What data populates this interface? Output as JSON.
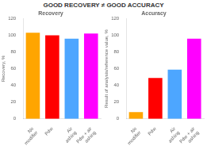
{
  "title": "GOOD RECOVERY ≠ GOOD ACCURACY",
  "chart_data": [
    {
      "type": "bar",
      "title": "Recovery",
      "categories": [
        "No\nmodifier",
        "Pdw",
        "Air\nashing",
        "Pdw + air\nashing"
      ],
      "values": [
        103,
        100,
        96,
        102
      ],
      "colors": [
        "#FFA500",
        "#FF0000",
        "#4da6ff",
        "#FF00FF"
      ],
      "ylabel": "Recovery, %",
      "ylim": [
        0,
        120
      ],
      "yticks": [
        0,
        20,
        40,
        60,
        80,
        100,
        120
      ],
      "grid": false
    },
    {
      "type": "bar",
      "title": "Accuracy",
      "categories": [
        "No\nmodifier",
        "Pdw",
        "Air\nashing",
        "Pdw + air\nashing"
      ],
      "values": [
        8,
        49,
        59,
        96
      ],
      "colors": [
        "#FFA500",
        "#FF0000",
        "#4da6ff",
        "#FF00FF"
      ],
      "ylabel": "Result of analysis/reference value, %",
      "ylim": [
        0,
        120
      ],
      "yticks": [
        0,
        20,
        40,
        60,
        80,
        100,
        120
      ],
      "grid": false
    }
  ]
}
